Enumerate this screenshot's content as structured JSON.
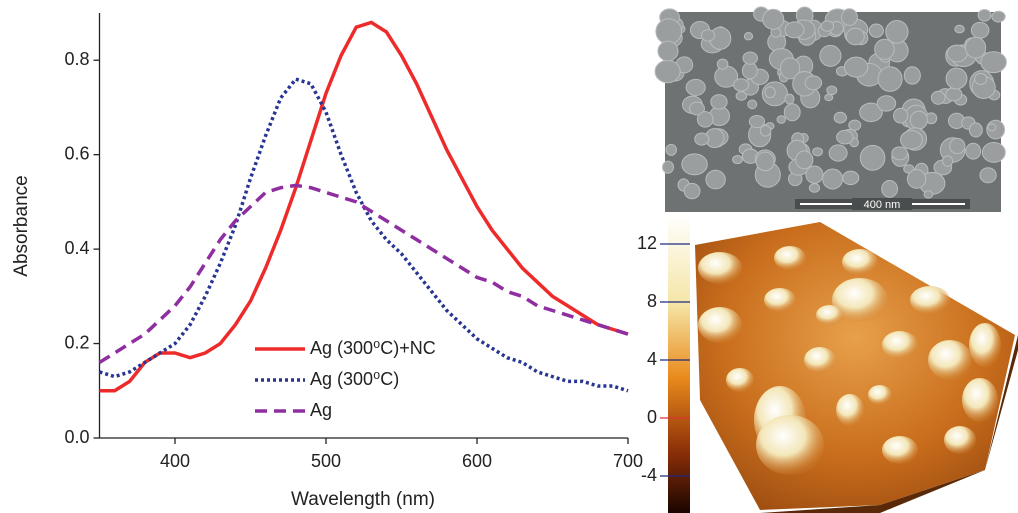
{
  "chart_data": {
    "type": "line",
    "x_label": "Wavelength (nm)",
    "y_label": "Absorbance",
    "x": [
      350,
      360,
      370,
      380,
      390,
      400,
      410,
      420,
      430,
      440,
      450,
      460,
      470,
      480,
      490,
      500,
      510,
      520,
      530,
      540,
      550,
      560,
      570,
      580,
      590,
      600,
      610,
      620,
      630,
      640,
      650,
      660,
      670,
      680,
      690,
      700
    ],
    "series": [
      {
        "name": "Ag (300⁰C)+NC",
        "color": "#ee2b2b",
        "dash": "solid",
        "values": [
          0.1,
          0.1,
          0.12,
          0.16,
          0.18,
          0.18,
          0.17,
          0.18,
          0.2,
          0.24,
          0.29,
          0.36,
          0.44,
          0.53,
          0.63,
          0.73,
          0.81,
          0.87,
          0.88,
          0.86,
          0.81,
          0.75,
          0.68,
          0.61,
          0.55,
          0.49,
          0.44,
          0.4,
          0.36,
          0.33,
          0.3,
          0.28,
          0.26,
          0.24,
          0.23,
          0.22
        ]
      },
      {
        "name": "Ag (300⁰C)",
        "color": "#283593",
        "dash": "dotted",
        "values": [
          0.14,
          0.13,
          0.14,
          0.16,
          0.18,
          0.2,
          0.24,
          0.3,
          0.37,
          0.45,
          0.55,
          0.64,
          0.72,
          0.76,
          0.75,
          0.69,
          0.6,
          0.52,
          0.46,
          0.42,
          0.39,
          0.35,
          0.31,
          0.27,
          0.24,
          0.21,
          0.19,
          0.17,
          0.16,
          0.14,
          0.13,
          0.12,
          0.12,
          0.11,
          0.11,
          0.1
        ]
      },
      {
        "name": "Ag",
        "color": "#8e2ea0",
        "dash": "dashed",
        "values": [
          0.16,
          0.18,
          0.2,
          0.22,
          0.25,
          0.28,
          0.32,
          0.37,
          0.42,
          0.46,
          0.49,
          0.52,
          0.53,
          0.535,
          0.53,
          0.52,
          0.51,
          0.5,
          0.48,
          0.46,
          0.44,
          0.42,
          0.4,
          0.38,
          0.36,
          0.34,
          0.33,
          0.31,
          0.3,
          0.28,
          0.27,
          0.26,
          0.25,
          0.24,
          0.23,
          0.22
        ]
      }
    ],
    "xlim": [
      350,
      700
    ],
    "xticks": [
      400,
      500,
      600,
      700
    ],
    "ylim": [
      0,
      0.9
    ],
    "yticks": [
      {
        "value": 0,
        "label": "0.0"
      },
      0.2,
      0.4,
      0.6,
      0.8
    ],
    "legend": "lower center"
  },
  "sem_image": {
    "scale_bar": "400 nm"
  },
  "afm_image": {
    "colorbar_ticks": [
      12,
      8,
      4,
      0,
      -4
    ]
  }
}
